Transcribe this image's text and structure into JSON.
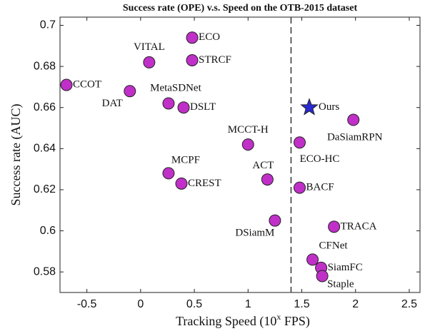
{
  "chart_data": {
    "type": "scatter",
    "title": "Success rate (OPE) v.s. Speed on the OTB-2015 dataset",
    "xlabel": [
      "Tracking Speed (10",
      "x",
      " FPS)"
    ],
    "ylabel": "Success rate (AUC)",
    "xlim": [
      -0.75,
      2.6
    ],
    "ylim": [
      0.57,
      0.704
    ],
    "xticks": [
      -0.5,
      0,
      0.5,
      1,
      1.5,
      2,
      2.5
    ],
    "yticks": [
      0.58,
      0.6,
      0.62,
      0.64,
      0.66,
      0.68,
      0.7
    ],
    "vline": 1.4,
    "series": [
      {
        "marker": "circle",
        "color": "#c030c8",
        "labels": [
          "CCOT",
          "DAT",
          "VITAL",
          "ECO",
          "STRCF",
          "MetaSDNet",
          "DSLT",
          "MCCT-H",
          "ACT",
          "MCPF",
          "CREST",
          "DSiamM",
          "ECO-HC",
          "BACF",
          "DaSiamRPN",
          "TRACA",
          "CFNet",
          "SiamFC",
          "Staple"
        ],
        "x": [
          -0.69,
          -0.1,
          0.08,
          0.48,
          0.48,
          0.26,
          0.4,
          1.0,
          1.18,
          0.26,
          0.38,
          1.25,
          1.48,
          1.48,
          1.98,
          1.8,
          1.6,
          1.68,
          1.69
        ],
        "values": [
          0.671,
          0.668,
          0.682,
          0.694,
          0.683,
          0.662,
          0.66,
          0.642,
          0.625,
          0.628,
          0.623,
          0.605,
          0.643,
          0.621,
          0.654,
          0.602,
          0.586,
          0.582,
          0.578
        ]
      },
      {
        "marker": "star",
        "color": "#2a2ad0",
        "labels": [
          "Ours"
        ],
        "x": [
          1.57
        ],
        "values": [
          0.66
        ]
      }
    ]
  }
}
